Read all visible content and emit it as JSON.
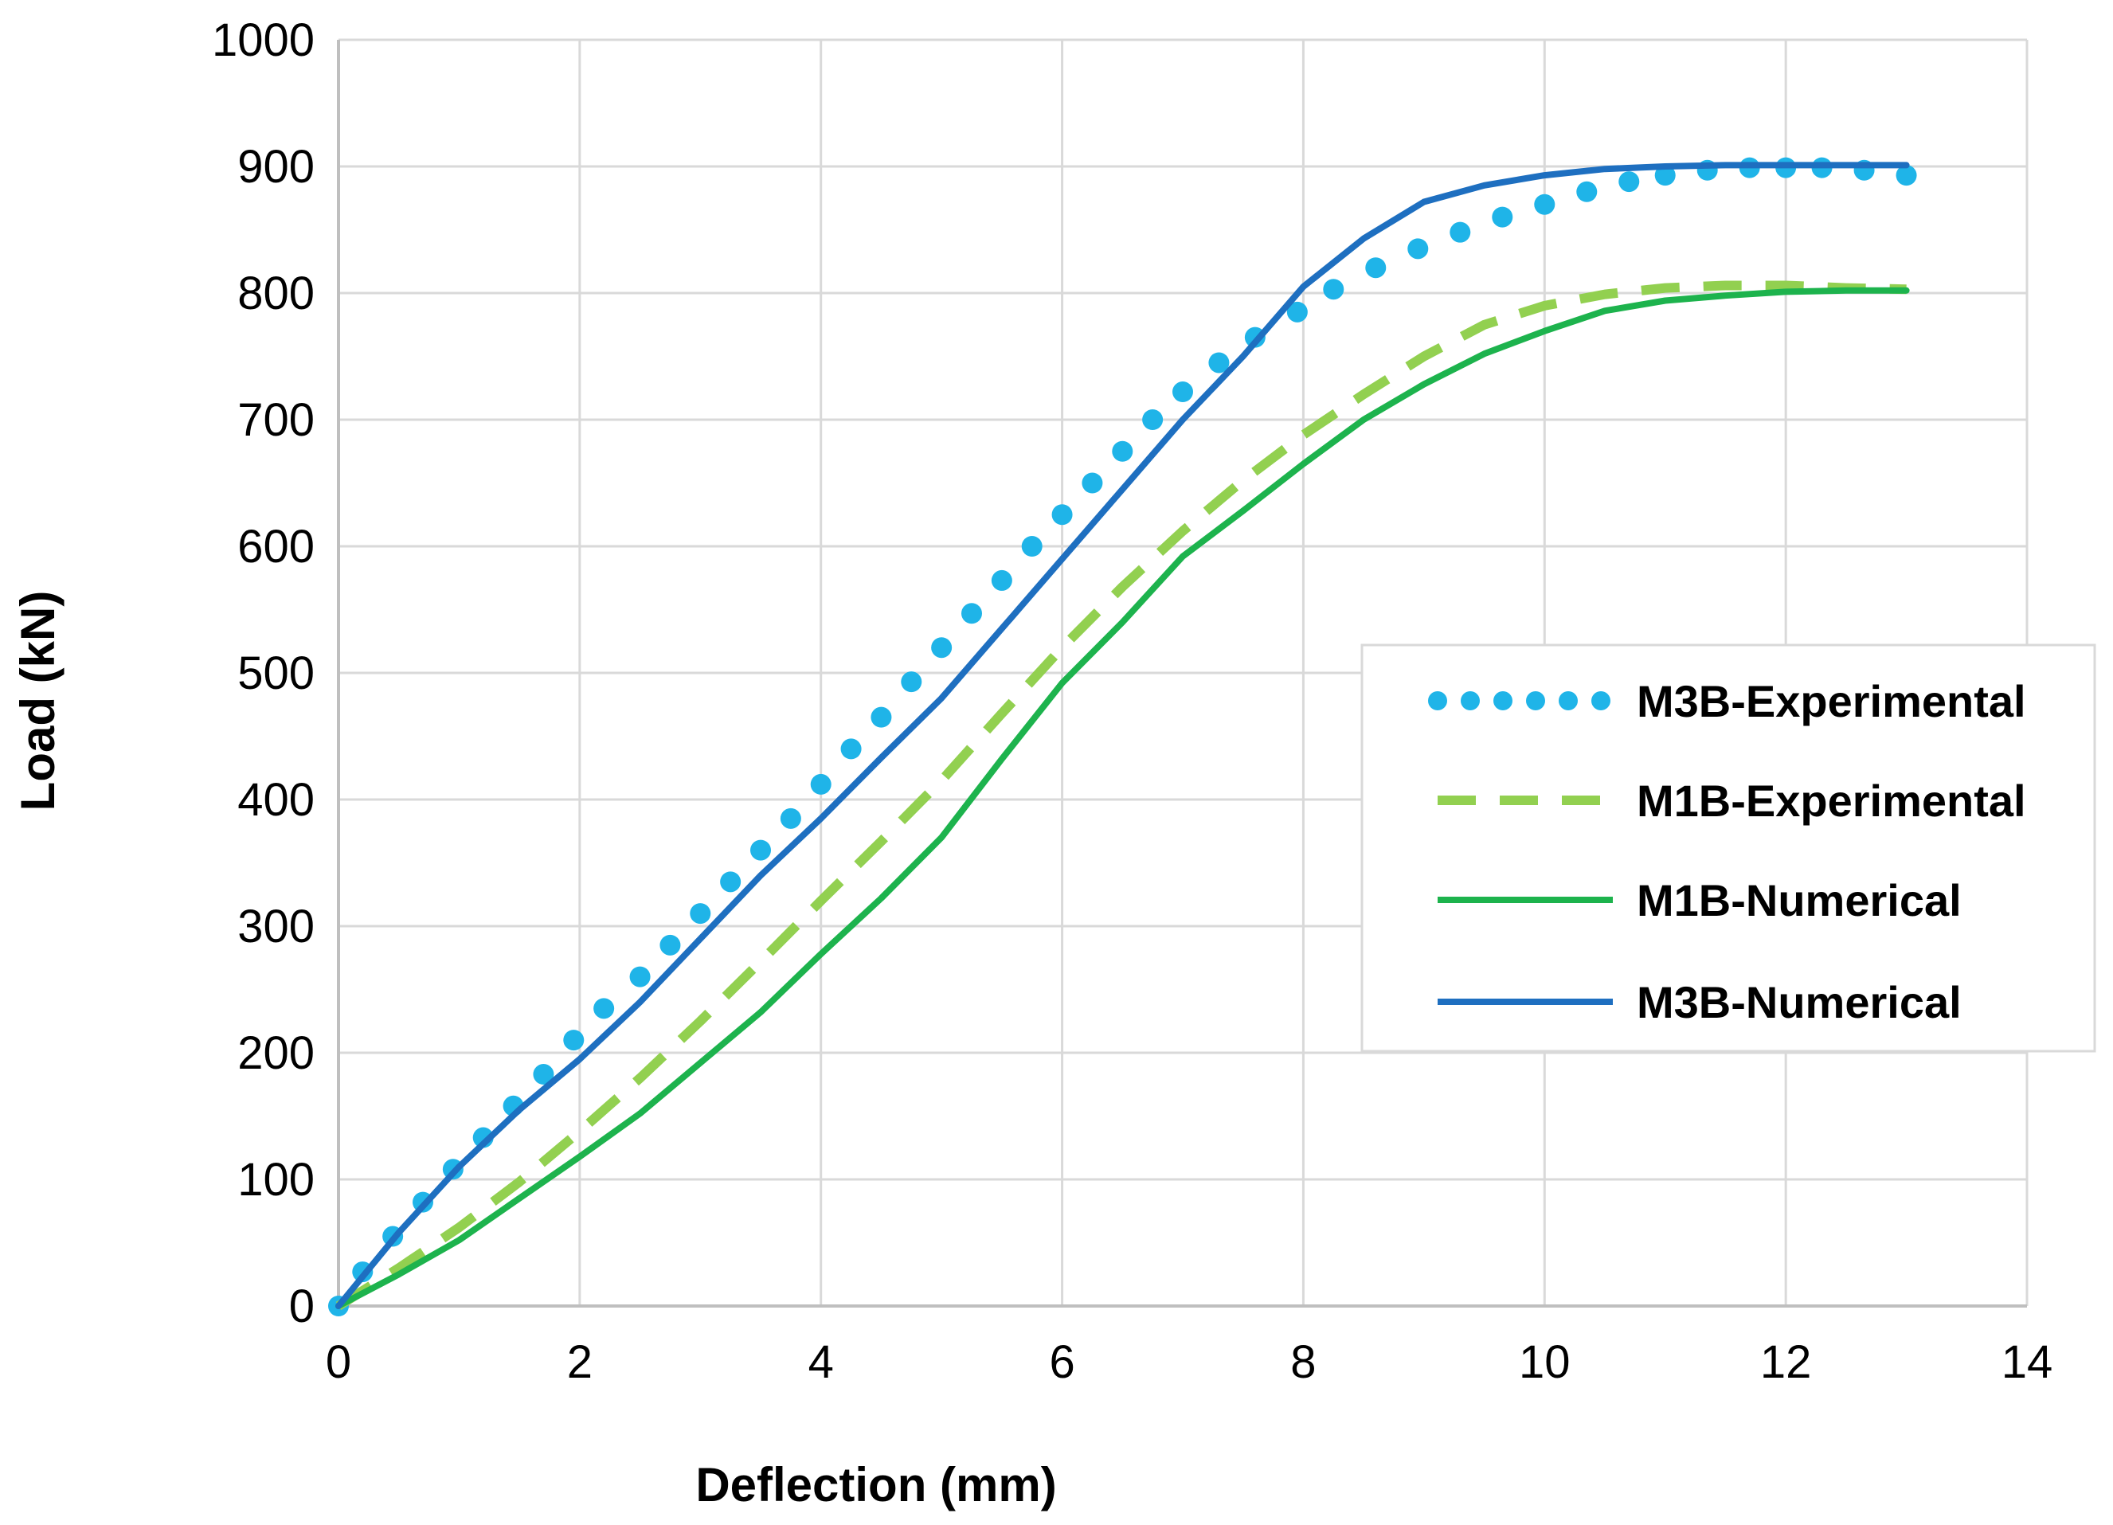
{
  "chart_data": {
    "type": "line",
    "title": "",
    "xlabel": "Deflection (mm)",
    "ylabel": "Load (kN)",
    "xlim": [
      0,
      14
    ],
    "ylim": [
      0,
      1000
    ],
    "xticks": [
      0,
      2,
      4,
      6,
      8,
      10,
      12,
      14
    ],
    "yticks": [
      0,
      100,
      200,
      300,
      400,
      500,
      600,
      700,
      800,
      900,
      1000
    ],
    "grid": true,
    "legend_position": "right",
    "series": [
      {
        "name": "M3B-Experimental",
        "style": "dotted",
        "color": "#1FB4E8",
        "x": [
          0,
          0.2,
          0.45,
          0.7,
          0.95,
          1.2,
          1.45,
          1.7,
          1.95,
          2.2,
          2.5,
          2.75,
          3.0,
          3.25,
          3.5,
          3.75,
          4.0,
          4.25,
          4.5,
          4.75,
          5.0,
          5.25,
          5.5,
          5.75,
          6.0,
          6.25,
          6.5,
          6.75,
          7.0,
          7.3,
          7.6,
          7.95,
          8.25,
          8.6,
          8.95,
          9.3,
          9.65,
          10.0,
          10.35,
          10.7,
          11.0,
          11.35,
          11.7,
          12.0,
          12.3,
          12.65,
          13.0
        ],
        "y": [
          0,
          27,
          55,
          82,
          108,
          133,
          158,
          183,
          210,
          235,
          260,
          285,
          310,
          335,
          360,
          385,
          412,
          440,
          465,
          493,
          520,
          547,
          573,
          600,
          625,
          650,
          675,
          700,
          722,
          745,
          765,
          785,
          803,
          820,
          835,
          848,
          860,
          870,
          880,
          888,
          893,
          897,
          899,
          899,
          899,
          897,
          893
        ]
      },
      {
        "name": "M1B-Experimental",
        "style": "dashed",
        "color": "#92D050",
        "x": [
          0,
          0.5,
          1.0,
          1.5,
          2.0,
          2.5,
          3.0,
          3.5,
          4.0,
          4.5,
          5.0,
          5.5,
          6.0,
          6.5,
          7.0,
          7.5,
          8.0,
          8.5,
          9.0,
          9.5,
          10.0,
          10.5,
          11.0,
          11.5,
          12.0,
          12.5,
          13.0
        ],
        "y": [
          0,
          30,
          62,
          98,
          138,
          180,
          225,
          272,
          320,
          367,
          415,
          468,
          520,
          568,
          612,
          652,
          688,
          720,
          750,
          775,
          790,
          799,
          804,
          806,
          806,
          804,
          803
        ]
      },
      {
        "name": "M1B-Numerical",
        "style": "solid",
        "color": "#1DB34D",
        "x": [
          0,
          0.5,
          1.0,
          1.5,
          2.0,
          2.5,
          3.0,
          3.5,
          4.0,
          4.5,
          5.0,
          5.5,
          6.0,
          6.5,
          7.0,
          7.5,
          8.0,
          8.5,
          9.0,
          9.5,
          10.0,
          10.5,
          11.0,
          11.5,
          12.0,
          12.5,
          13.0
        ],
        "y": [
          0,
          25,
          52,
          85,
          118,
          152,
          192,
          232,
          278,
          322,
          370,
          432,
          492,
          540,
          592,
          628,
          665,
          700,
          728,
          752,
          770,
          786,
          794,
          798,
          801,
          802,
          802
        ]
      },
      {
        "name": "M3B-Numerical",
        "style": "solid",
        "color": "#1E6FC0",
        "x": [
          0,
          0.5,
          1.0,
          1.5,
          2.0,
          2.5,
          3.0,
          3.5,
          4.0,
          4.5,
          5.0,
          5.5,
          6.0,
          6.5,
          7.0,
          7.5,
          8.0,
          8.5,
          9.0,
          9.5,
          10.0,
          10.5,
          11.0,
          11.5,
          12.0,
          12.5,
          13.0
        ],
        "y": [
          0,
          58,
          110,
          155,
          195,
          240,
          290,
          340,
          385,
          433,
          480,
          535,
          590,
          645,
          700,
          750,
          805,
          843,
          872,
          885,
          893,
          898,
          900,
          901,
          901,
          901,
          901
        ]
      }
    ]
  }
}
